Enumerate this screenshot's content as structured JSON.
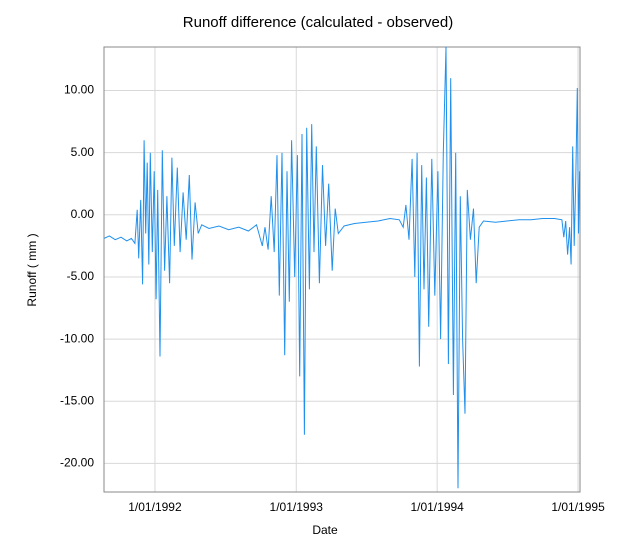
{
  "chart_data": {
    "type": "line",
    "title": "Runoff difference (calculated - observed)",
    "x_label": "Date",
    "y_label": "Runoff ( mm )",
    "grid": true,
    "xlim": [
      "1991-08-22",
      "1995-01-06"
    ],
    "xticks": [
      {
        "value": "1992-01-01",
        "label": "1/01/1992"
      },
      {
        "value": "1993-01-01",
        "label": "1/01/1993"
      },
      {
        "value": "1994-01-01",
        "label": "1/01/1994"
      },
      {
        "value": "1995-01-01",
        "label": "1/01/1995"
      }
    ],
    "ylim": [
      -22.3,
      13.5
    ],
    "yticks": [
      {
        "value": 10,
        "label": "10.00"
      },
      {
        "value": 5,
        "label": "5.00"
      },
      {
        "value": 0,
        "label": "0.00"
      },
      {
        "value": -5,
        "label": "-5.00"
      },
      {
        "value": -10,
        "label": "-10.00"
      },
      {
        "value": -15,
        "label": "-15.00"
      },
      {
        "value": -20,
        "label": "-20.00"
      }
    ],
    "x": [
      "1991-08-22",
      "1991-09-05",
      "1991-09-20",
      "1991-10-05",
      "1991-10-20",
      "1991-11-01",
      "1991-11-10",
      "1991-11-16",
      "1991-11-20",
      "1991-11-25",
      "1991-11-30",
      "1991-12-04",
      "1991-12-08",
      "1991-12-12",
      "1991-12-16",
      "1991-12-20",
      "1991-12-25",
      "1991-12-30",
      "1992-01-04",
      "1992-01-08",
      "1992-01-14",
      "1992-01-20",
      "1992-01-26",
      "1992-02-01",
      "1992-02-08",
      "1992-02-14",
      "1992-02-20",
      "1992-02-28",
      "1992-03-06",
      "1992-03-14",
      "1992-03-22",
      "1992-03-30",
      "1992-04-06",
      "1992-04-14",
      "1992-04-22",
      "1992-05-01",
      "1992-05-20",
      "1992-06-15",
      "1992-07-10",
      "1992-08-05",
      "1992-08-30",
      "1992-09-20",
      "1992-10-05",
      "1992-10-12",
      "1992-10-20",
      "1992-10-28",
      "1992-11-05",
      "1992-11-12",
      "1992-11-18",
      "1992-11-25",
      "1992-12-02",
      "1992-12-08",
      "1992-12-14",
      "1992-12-20",
      "1992-12-28",
      "1993-01-04",
      "1993-01-10",
      "1993-01-16",
      "1993-01-22",
      "1993-01-28",
      "1993-02-04",
      "1993-02-10",
      "1993-02-16",
      "1993-02-22",
      "1993-03-02",
      "1993-03-10",
      "1993-03-18",
      "1993-03-26",
      "1993-04-04",
      "1993-04-12",
      "1993-04-20",
      "1993-05-05",
      "1993-06-01",
      "1993-07-01",
      "1993-08-01",
      "1993-09-01",
      "1993-09-25",
      "1993-10-05",
      "1993-10-12",
      "1993-10-20",
      "1993-10-28",
      "1993-11-04",
      "1993-11-10",
      "1993-11-16",
      "1993-11-22",
      "1993-11-28",
      "1993-12-04",
      "1993-12-10",
      "1993-12-18",
      "1993-12-26",
      "1994-01-03",
      "1994-01-10",
      "1994-01-17",
      "1994-01-24",
      "1994-01-30",
      "1994-02-05",
      "1994-02-12",
      "1994-02-18",
      "1994-02-24",
      "1994-03-02",
      "1994-03-08",
      "1994-03-14",
      "1994-03-20",
      "1994-03-28",
      "1994-04-05",
      "1994-04-12",
      "1994-04-20",
      "1994-05-01",
      "1994-06-01",
      "1994-07-01",
      "1994-08-01",
      "1994-09-01",
      "1994-10-01",
      "1994-11-01",
      "1994-11-20",
      "1994-11-25",
      "1994-11-30",
      "1994-12-05",
      "1994-12-10",
      "1994-12-14",
      "1994-12-18",
      "1994-12-22",
      "1994-12-26",
      "1994-12-30",
      "1995-01-02",
      "1995-01-05"
    ],
    "series": [
      {
        "name": "Runoff difference",
        "color": "#2090ec",
        "values": [
          -1.9,
          -1.7,
          -2.0,
          -1.8,
          -2.1,
          -1.9,
          -2.3,
          0.4,
          -3.5,
          1.2,
          -5.6,
          6.0,
          -1.5,
          4.2,
          -4.0,
          5.0,
          -3.0,
          3.5,
          -6.8,
          2.0,
          -11.4,
          5.2,
          -4.5,
          1.5,
          -5.5,
          4.6,
          -2.5,
          3.8,
          -3.0,
          1.8,
          -2.0,
          3.2,
          -3.6,
          1.0,
          -1.5,
          -0.8,
          -1.1,
          -0.9,
          -1.2,
          -1.0,
          -1.3,
          -0.8,
          -2.5,
          -1.0,
          -2.8,
          1.5,
          -3.0,
          4.8,
          -6.5,
          5.0,
          -11.3,
          3.5,
          -7.0,
          6.0,
          -5.0,
          4.8,
          -13.0,
          6.5,
          -17.7,
          7.0,
          -6.0,
          7.3,
          -3.0,
          5.5,
          -5.5,
          4.0,
          -2.5,
          2.5,
          -4.5,
          0.5,
          -1.5,
          -0.9,
          -0.7,
          -0.6,
          -0.5,
          -0.3,
          -0.4,
          -1.0,
          0.8,
          -2.0,
          4.5,
          -5.0,
          5.0,
          -12.2,
          4.0,
          -6.0,
          3.0,
          -9.0,
          4.5,
          -6.5,
          3.5,
          -10.0,
          5.0,
          13.5,
          -12.0,
          11.0,
          -14.5,
          5.0,
          -22.0,
          1.5,
          -10.0,
          -16.0,
          2.0,
          -2.0,
          0.5,
          -5.5,
          -1.0,
          -0.5,
          -0.6,
          -0.5,
          -0.4,
          -0.4,
          -0.3,
          -0.3,
          -0.4,
          -1.8,
          -0.5,
          -3.2,
          -1.0,
          -4.0,
          5.5,
          -2.5,
          3.0,
          10.2,
          -1.5,
          3.5
        ]
      }
    ]
  }
}
